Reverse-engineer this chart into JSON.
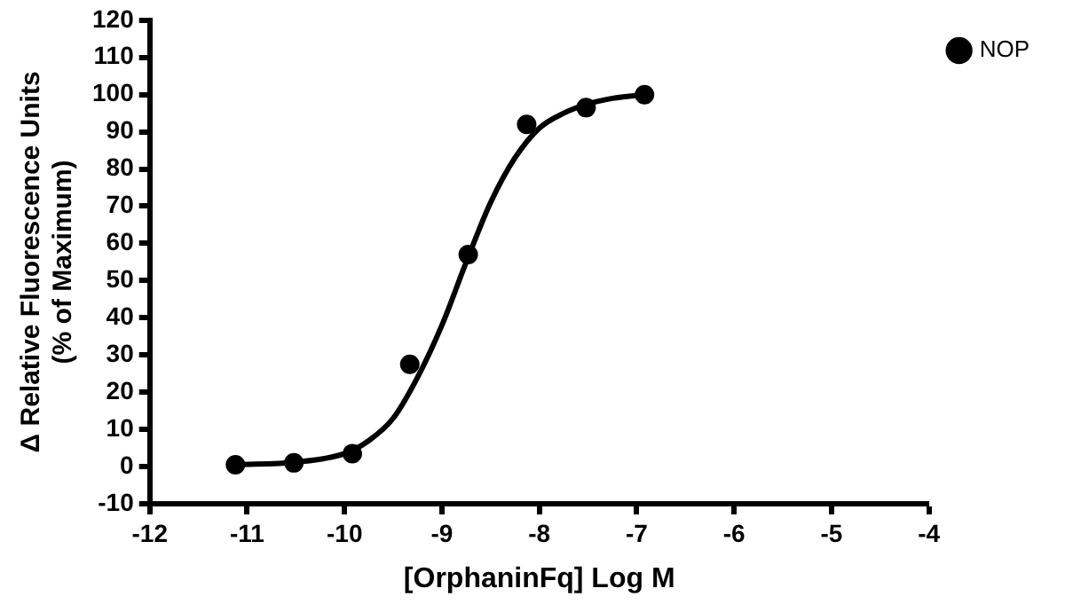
{
  "chart_data": {
    "type": "scatter",
    "xlabel": "[OrphaninFq] Log M",
    "ylabel": "Δ Relative Fluorescence Units\n(% of Maximum)",
    "xlim": [
      -12,
      -4
    ],
    "xticks": [
      -12,
      -11,
      -10,
      -9,
      -8,
      -7,
      -6,
      -5,
      -4
    ],
    "ylim": [
      -10,
      120
    ],
    "yticks": [
      -10,
      0,
      10,
      20,
      30,
      40,
      50,
      60,
      70,
      80,
      90,
      100,
      110,
      120
    ],
    "grid": false,
    "legend": "top right",
    "marker": "circle",
    "series": [
      {
        "name": "NOP",
        "type": "scatter",
        "color": "#000000",
        "x": [
          -11.12,
          -10.52,
          -9.92,
          -9.33,
          -8.73,
          -8.13,
          -7.52,
          -6.92
        ],
        "values": [
          0.5,
          1,
          3.5,
          27.5,
          57,
          92,
          96.5,
          100
        ]
      },
      {
        "type": "line",
        "color": "#000000",
        "line_style": "solid",
        "marker": "none",
        "x": [
          -11.12,
          -10.5,
          -10,
          -9.75,
          -9.5,
          -9.25,
          -9,
          -8.75,
          -8.5,
          -8.25,
          -8,
          -7.75,
          -7.5,
          -7.25,
          -6.92
        ],
        "values": [
          0.5,
          1.2,
          3.5,
          7,
          13,
          24,
          38,
          55,
          71,
          83,
          91,
          95,
          97.5,
          99,
          100
        ]
      }
    ]
  }
}
